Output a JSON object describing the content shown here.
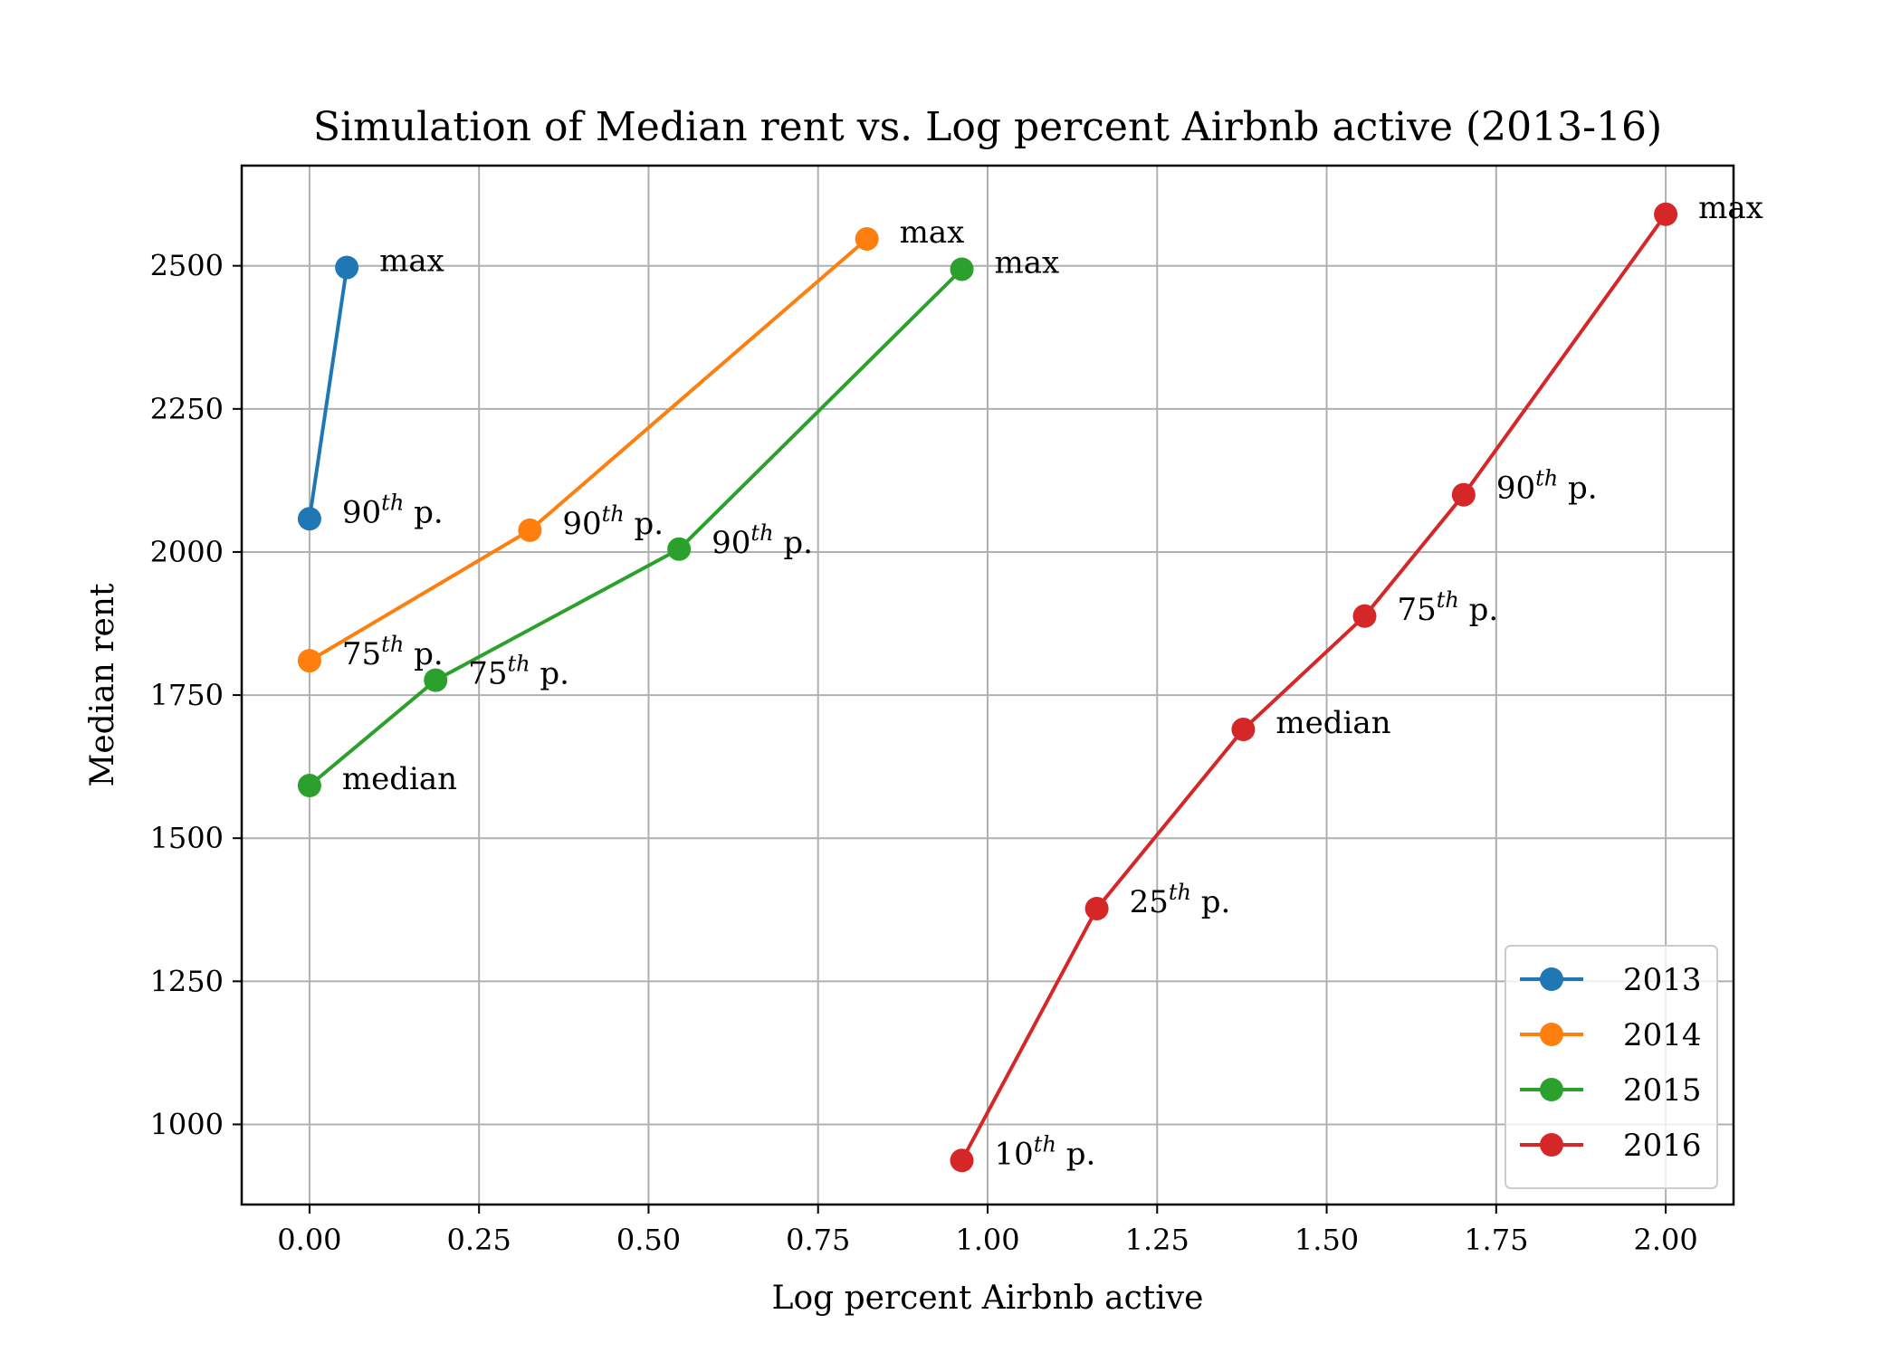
{
  "chart_data": {
    "type": "line",
    "title": "Simulation of Median rent vs. Log percent Airbnb active (2013-16)",
    "xlabel": "Log percent Airbnb active",
    "ylabel": "Median rent",
    "xlim": [
      -0.1,
      2.1
    ],
    "ylim": [
      860,
      2675
    ],
    "xticks": [
      0.0,
      0.25,
      0.5,
      0.75,
      1.0,
      1.25,
      1.5,
      1.75,
      2.0
    ],
    "xtick_labels": [
      "0.00",
      "0.25",
      "0.50",
      "0.75",
      "1.00",
      "1.25",
      "1.50",
      "1.75",
      "2.00"
    ],
    "yticks": [
      1000,
      1250,
      1500,
      1750,
      2000,
      2250,
      2500
    ],
    "ytick_labels": [
      "1000",
      "1250",
      "1500",
      "1750",
      "2000",
      "2250",
      "2500"
    ],
    "grid": true,
    "legend_position": "lower-right",
    "series": [
      {
        "name": "2013",
        "color": "#1f77b4",
        "points": [
          {
            "x": 0.0,
            "y": 2058,
            "label": "90",
            "sup": "th",
            "suffix": " p."
          },
          {
            "x": 0.055,
            "y": 2497,
            "label": "max",
            "sup": "",
            "suffix": ""
          }
        ]
      },
      {
        "name": "2014",
        "color": "#ff7f0e",
        "points": [
          {
            "x": 0.0,
            "y": 1810,
            "label": "75",
            "sup": "th",
            "suffix": " p."
          },
          {
            "x": 0.325,
            "y": 2038,
            "label": "90",
            "sup": "th",
            "suffix": " p."
          },
          {
            "x": 0.822,
            "y": 2547,
            "label": "max",
            "sup": "",
            "suffix": ""
          }
        ]
      },
      {
        "name": "2015",
        "color": "#2ca02c",
        "points": [
          {
            "x": 0.0,
            "y": 1592,
            "label": "median",
            "sup": "",
            "suffix": ""
          },
          {
            "x": 0.186,
            "y": 1776,
            "label": "75",
            "sup": "th",
            "suffix": " p."
          },
          {
            "x": 0.545,
            "y": 2005,
            "label": "90",
            "sup": "th",
            "suffix": " p."
          },
          {
            "x": 0.962,
            "y": 2494,
            "label": "max",
            "sup": "",
            "suffix": ""
          }
        ]
      },
      {
        "name": "2016",
        "color": "#d62728",
        "points": [
          {
            "x": 0.962,
            "y": 937,
            "label": "10",
            "sup": "th",
            "suffix": " p."
          },
          {
            "x": 1.161,
            "y": 1377,
            "label": "25",
            "sup": "th",
            "suffix": " p."
          },
          {
            "x": 1.377,
            "y": 1690,
            "label": "median",
            "sup": "",
            "suffix": ""
          },
          {
            "x": 1.556,
            "y": 1888,
            "label": "75",
            "sup": "th",
            "suffix": " p."
          },
          {
            "x": 1.702,
            "y": 2100,
            "label": "90",
            "sup": "th",
            "suffix": " p."
          },
          {
            "x": 2.0,
            "y": 2590,
            "label": "max",
            "sup": "",
            "suffix": ""
          }
        ]
      }
    ]
  }
}
